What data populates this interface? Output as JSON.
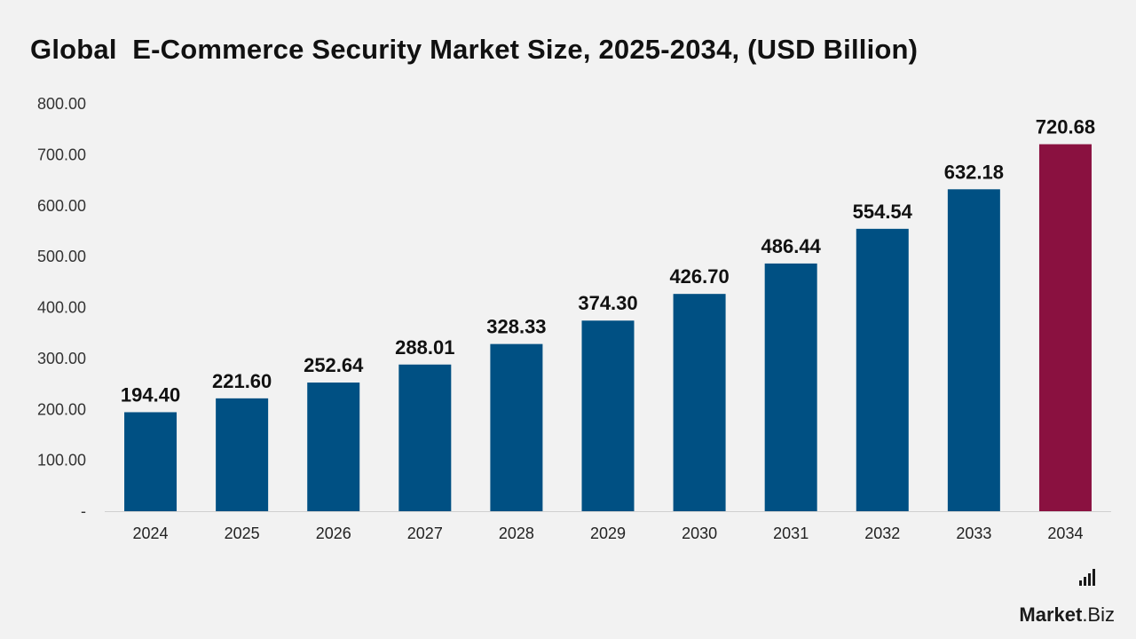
{
  "title": "Global  E-Commerce Security Market Size, 2025-2034, (USD Billion)",
  "brand": {
    "name_bold": "Market",
    "name_rest": ".Biz"
  },
  "colors": {
    "bar": "#005083",
    "highlight": "#8a1140",
    "background": "#f2f2f2"
  },
  "chart_data": {
    "type": "bar",
    "title": "Global  E-Commerce Security Market Size, 2025-2034, (USD Billion)",
    "xlabel": "",
    "ylabel": "",
    "categories": [
      "2024",
      "2025",
      "2026",
      "2027",
      "2028",
      "2029",
      "2030",
      "2031",
      "2032",
      "2033",
      "2034"
    ],
    "values": [
      194.4,
      221.6,
      252.64,
      288.01,
      328.33,
      374.3,
      426.7,
      486.44,
      554.54,
      632.18,
      720.68
    ],
    "data_labels": [
      "194.40",
      "221.60",
      "252.64",
      "288.01",
      "328.33",
      "374.30",
      "426.70",
      "486.44",
      "554.54",
      "632.18",
      "720.68"
    ],
    "highlight_category": "2034",
    "ylim": [
      0,
      800
    ],
    "yticks": [
      0,
      100,
      200,
      300,
      400,
      500,
      600,
      700,
      800
    ],
    "ytick_labels": [
      "-",
      "100.00",
      "200.00",
      "300.00",
      "400.00",
      "500.00",
      "600.00",
      "700.00",
      "800.00"
    ],
    "grid": false,
    "legend": "none"
  }
}
